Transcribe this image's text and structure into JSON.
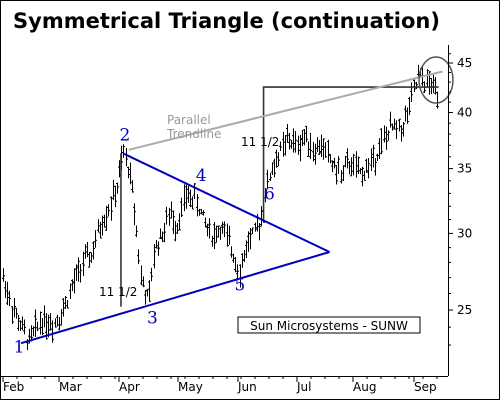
{
  "title": "Symmetrical Triangle (continuation)",
  "chart_data": {
    "type": "candlestick",
    "title": "Symmetrical Triangle (continuation)",
    "x_months": [
      "Feb",
      "Mar",
      "Apr",
      "May",
      "Jun",
      "Jul",
      "Aug",
      "Sep"
    ],
    "y_ticks": [
      25,
      30,
      35,
      40,
      45
    ],
    "y_scale": "log",
    "ylim": [
      22.5,
      47
    ],
    "grid": false,
    "series_note": "Sun Microsystems - SUNW",
    "price_path": [
      [
        "02-01",
        27.0
      ],
      [
        "02-06",
        25.0
      ],
      [
        "02-10",
        24.0
      ],
      [
        "02-14",
        23.2
      ],
      [
        "02-20",
        24.5
      ],
      [
        "02-26",
        24.2
      ],
      [
        "03-03",
        25.0
      ],
      [
        "03-08",
        26.5
      ],
      [
        "03-13",
        28.0
      ],
      [
        "03-18",
        28.5
      ],
      [
        "03-22",
        30.5
      ],
      [
        "03-27",
        32.0
      ],
      [
        "03-31",
        33.5
      ],
      [
        "04-03",
        36.3
      ],
      [
        "04-06",
        35.0
      ],
      [
        "04-09",
        31.5
      ],
      [
        "04-12",
        27.0
      ],
      [
        "04-16",
        25.4
      ],
      [
        "04-19",
        29.0
      ],
      [
        "04-23",
        30.0
      ],
      [
        "04-27",
        31.5
      ],
      [
        "04-30",
        30.5
      ],
      [
        "05-05",
        32.8
      ],
      [
        "05-10",
        32.5
      ],
      [
        "05-14",
        31.0
      ],
      [
        "05-19",
        29.8
      ],
      [
        "05-23",
        30.5
      ],
      [
        "05-28",
        29.0
      ],
      [
        "06-02",
        27.5
      ],
      [
        "06-06",
        29.5
      ],
      [
        "06-10",
        30.0
      ],
      [
        "06-13",
        31.5
      ],
      [
        "06-17",
        34.5
      ],
      [
        "06-21",
        36.0
      ],
      [
        "06-26",
        37.5
      ],
      [
        "07-01",
        37.0
      ],
      [
        "07-06",
        38.0
      ],
      [
        "07-10",
        36.5
      ],
      [
        "07-15",
        37.0
      ],
      [
        "07-20",
        35.5
      ],
      [
        "07-25",
        34.5
      ],
      [
        "07-30",
        35.5
      ],
      [
        "08-05",
        34.5
      ],
      [
        "08-10",
        35.5
      ],
      [
        "08-15",
        37.0
      ],
      [
        "08-20",
        38.5
      ],
      [
        "08-25",
        38.5
      ],
      [
        "08-29",
        40.0
      ],
      [
        "09-03",
        43.5
      ],
      [
        "09-07",
        43.0
      ],
      [
        "09-11",
        42.5
      ],
      [
        "09-14",
        42.0
      ]
    ],
    "pattern": {
      "upper_trendline": [
        [
          "04-03",
          36.3
        ],
        [
          "07-19",
          28.7
        ]
      ],
      "lower_trendline": [
        [
          "02-10",
          23.1
        ],
        [
          "07-19",
          28.7
        ]
      ],
      "parallel_trendline": [
        [
          "04-06",
          36.6
        ],
        [
          "09-16",
          44.1
        ]
      ],
      "measured_move_start": [
        [
          "04-02",
          25.2
        ],
        [
          "04-02",
          36.3
        ]
      ],
      "measured_move_target": [
        [
          "06-14",
          31.0
        ],
        [
          "06-14",
          42.5
        ],
        [
          "09-14",
          42.5
        ]
      ]
    },
    "point_labels": [
      {
        "label": "1",
        "date": "02-09",
        "price": 22.6
      },
      {
        "label": "2",
        "date": "04-04",
        "price": 37.4
      },
      {
        "label": "3",
        "date": "04-18",
        "price": 24.2
      },
      {
        "label": "4",
        "date": "05-13",
        "price": 34.0
      },
      {
        "label": "5",
        "date": "06-02",
        "price": 26.2
      },
      {
        "label": "6",
        "date": "06-17",
        "price": 32.5
      }
    ],
    "annotations": {
      "parallel_line_1": "Parallel",
      "parallel_line_2": "Trendline",
      "height_left": "11 1/2",
      "height_right": "11 1/2",
      "stock_box": "Sun Microsystems - SUNW"
    },
    "colors": {
      "pattern": "#0000bb",
      "parallel": "#aaaaaa",
      "guides": "#333333",
      "price": "#000000"
    }
  }
}
